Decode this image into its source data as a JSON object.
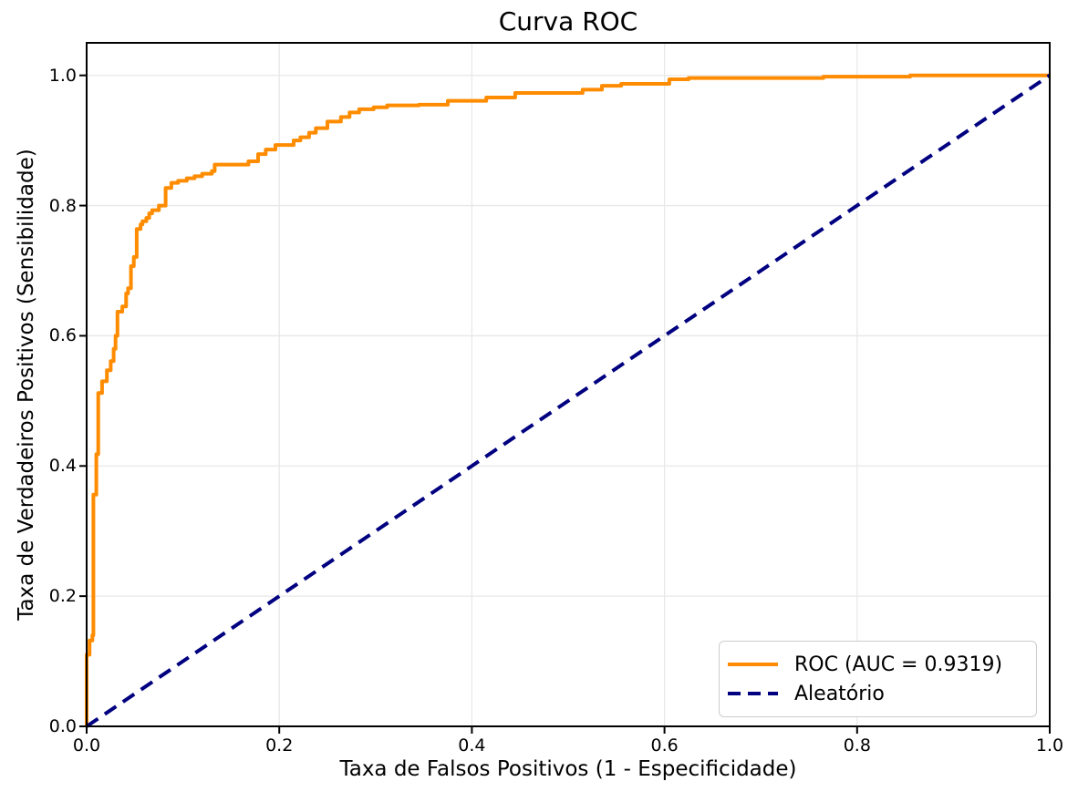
{
  "chart_data": {
    "type": "line",
    "title": "Curva ROC",
    "xlabel": "Taxa de Falsos Positivos (1 - Especificidade)",
    "ylabel": "Taxa de Verdadeiros Positivos (Sensibilidade)",
    "xlim": [
      0.0,
      1.0
    ],
    "ylim": [
      0.0,
      1.05
    ],
    "grid": true,
    "legend_position": "lower right",
    "xticks": {
      "values": [
        0.0,
        0.2,
        0.4,
        0.6,
        0.8,
        1.0
      ],
      "labels": [
        "0.0",
        "0.2",
        "0.4",
        "0.6",
        "0.8",
        "1.0"
      ]
    },
    "yticks": {
      "values": [
        0.0,
        0.2,
        0.4,
        0.6,
        0.8,
        1.0
      ],
      "labels": [
        "0.0",
        "0.2",
        "0.4",
        "0.6",
        "0.8",
        "1.0"
      ]
    },
    "colors": {
      "roc": "#ff8c00",
      "random": "#000080",
      "grid": "#e8e8e8",
      "spine": "#000000",
      "text": "#000000",
      "legend_border": "#cccccc"
    },
    "series": [
      {
        "name": "ROC (AUC = 0.9319)",
        "auc": 0.9319,
        "color": "#ff8c00",
        "linestyle": "solid",
        "draw": "step",
        "points": [
          [
            0.0,
            0.0
          ],
          [
            0.0,
            0.11
          ],
          [
            0.003,
            0.132
          ],
          [
            0.006,
            0.14
          ],
          [
            0.007,
            0.356
          ],
          [
            0.01,
            0.418
          ],
          [
            0.012,
            0.512
          ],
          [
            0.016,
            0.53
          ],
          [
            0.021,
            0.547
          ],
          [
            0.025,
            0.561
          ],
          [
            0.028,
            0.58
          ],
          [
            0.03,
            0.6
          ],
          [
            0.032,
            0.637
          ],
          [
            0.037,
            0.645
          ],
          [
            0.041,
            0.665
          ],
          [
            0.043,
            0.673
          ],
          [
            0.046,
            0.707
          ],
          [
            0.049,
            0.721
          ],
          [
            0.052,
            0.764
          ],
          [
            0.056,
            0.771
          ],
          [
            0.058,
            0.776
          ],
          [
            0.062,
            0.781
          ],
          [
            0.065,
            0.788
          ],
          [
            0.068,
            0.793
          ],
          [
            0.075,
            0.8
          ],
          [
            0.082,
            0.827
          ],
          [
            0.088,
            0.835
          ],
          [
            0.095,
            0.838
          ],
          [
            0.104,
            0.842
          ],
          [
            0.112,
            0.845
          ],
          [
            0.12,
            0.849
          ],
          [
            0.13,
            0.853
          ],
          [
            0.133,
            0.863
          ],
          [
            0.168,
            0.868
          ],
          [
            0.178,
            0.879
          ],
          [
            0.186,
            0.886
          ],
          [
            0.196,
            0.893
          ],
          [
            0.215,
            0.9
          ],
          [
            0.222,
            0.905
          ],
          [
            0.231,
            0.912
          ],
          [
            0.238,
            0.919
          ],
          [
            0.25,
            0.929
          ],
          [
            0.264,
            0.936
          ],
          [
            0.273,
            0.943
          ],
          [
            0.283,
            0.948
          ],
          [
            0.298,
            0.951
          ],
          [
            0.312,
            0.954
          ],
          [
            0.345,
            0.955
          ],
          [
            0.375,
            0.961
          ],
          [
            0.415,
            0.966
          ],
          [
            0.445,
            0.973
          ],
          [
            0.515,
            0.978
          ],
          [
            0.535,
            0.984
          ],
          [
            0.555,
            0.987
          ],
          [
            0.605,
            0.994
          ],
          [
            0.625,
            0.996
          ],
          [
            0.765,
            0.998
          ],
          [
            0.855,
            1.0
          ],
          [
            1.0,
            1.0
          ]
        ]
      },
      {
        "name": "Aleatório",
        "color": "#000080",
        "linestyle": "dashed",
        "draw": "line",
        "points": [
          [
            0.0,
            0.0
          ],
          [
            1.0,
            1.0
          ]
        ]
      }
    ]
  }
}
